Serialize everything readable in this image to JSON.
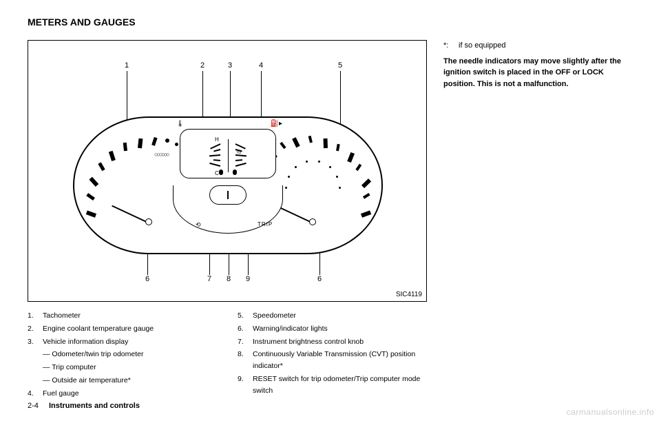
{
  "page_title": "METERS AND GAUGES",
  "figure_id": "SIC4119",
  "callouts_top": [
    "1",
    "2",
    "3",
    "4",
    "5"
  ],
  "callouts_bottom": [
    "6",
    "7",
    "8",
    "9",
    "6"
  ],
  "center_pod": {
    "temp_icon": "🌡",
    "fuel_icon": "⛽▸",
    "letter_h": "H",
    "letter_c": "C",
    "half": "½"
  },
  "lower": {
    "trip": "TRIP",
    "eco": "⟲"
  },
  "legend_left": [
    {
      "n": "1.",
      "t": "Tachometer"
    },
    {
      "n": "2.",
      "t": "Engine coolant temperature gauge"
    },
    {
      "n": "3.",
      "t": "Vehicle information display"
    },
    {
      "n": "",
      "t": "— Odometer/twin trip odometer",
      "sub": true
    },
    {
      "n": "",
      "t": "— Trip computer",
      "sub": true
    },
    {
      "n": "",
      "t": "— Outside air temperature*",
      "sub": true
    },
    {
      "n": "4.",
      "t": "Fuel gauge"
    }
  ],
  "legend_right": [
    {
      "n": "5.",
      "t": "Speedometer"
    },
    {
      "n": "6.",
      "t": "Warning/indicator lights"
    },
    {
      "n": "7.",
      "t": "Instrument brightness control knob"
    },
    {
      "n": "8.",
      "t": "Continuously Variable Transmission (CVT) position indicator*"
    },
    {
      "n": "9.",
      "t": "RESET switch for trip odometer/Trip computer mode switch"
    }
  ],
  "footnote_mark": "*:",
  "footnote_text": "if so equipped",
  "note": "The needle indicators may move slightly after the ignition switch is placed in the OFF or LOCK position. This is not a malfunction.",
  "footer_page": "2-4",
  "footer_section": "Instruments and controls",
  "watermark": "carmanualsonline.info"
}
